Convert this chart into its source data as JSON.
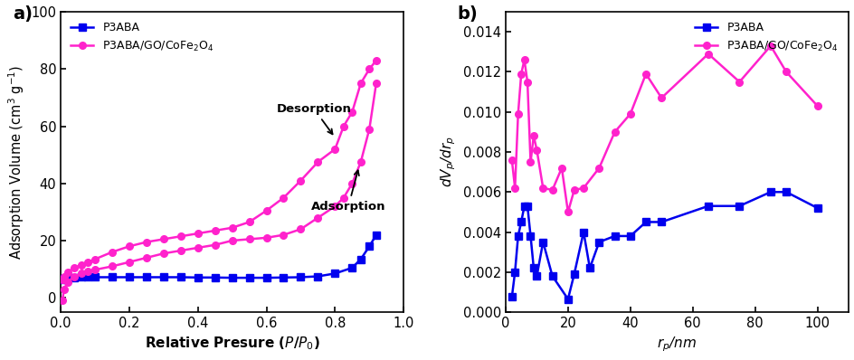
{
  "panel_a": {
    "blue_adsorption_x": [
      0.005,
      0.01,
      0.02,
      0.04,
      0.06,
      0.08,
      0.1,
      0.15,
      0.2,
      0.25,
      0.3,
      0.35,
      0.4,
      0.45,
      0.5,
      0.55,
      0.6,
      0.65,
      0.7,
      0.75,
      0.8,
      0.85,
      0.875,
      0.9,
      0.92
    ],
    "blue_adsorption_y": [
      6.5,
      6.8,
      7.0,
      7.1,
      7.2,
      7.2,
      7.2,
      7.2,
      7.2,
      7.2,
      7.2,
      7.2,
      7.1,
      7.1,
      7.0,
      7.0,
      7.0,
      7.1,
      7.2,
      7.5,
      8.5,
      10.5,
      13.5,
      18.0,
      22.0
    ],
    "pink_adsorption_x": [
      0.005,
      0.01,
      0.02,
      0.04,
      0.06,
      0.08,
      0.1,
      0.15,
      0.2,
      0.25,
      0.3,
      0.35,
      0.4,
      0.45,
      0.5,
      0.55,
      0.6,
      0.65,
      0.7,
      0.75,
      0.8,
      0.825,
      0.85,
      0.875,
      0.9,
      0.92
    ],
    "pink_adsorption_y": [
      -1.0,
      3.0,
      5.5,
      7.5,
      8.5,
      9.2,
      9.8,
      11.0,
      12.5,
      14.0,
      15.5,
      16.5,
      17.5,
      18.5,
      20.0,
      20.5,
      21.0,
      22.0,
      24.0,
      28.0,
      32.0,
      35.0,
      40.0,
      47.5,
      59.0,
      75.0
    ],
    "pink_desorption_x": [
      0.92,
      0.9,
      0.875,
      0.85,
      0.825,
      0.8,
      0.75,
      0.7,
      0.65,
      0.6,
      0.55,
      0.5,
      0.45,
      0.4,
      0.35,
      0.3,
      0.25,
      0.2,
      0.15,
      0.1,
      0.08,
      0.06,
      0.04,
      0.02,
      0.01,
      0.005
    ],
    "pink_desorption_y": [
      83.0,
      80.0,
      75.0,
      65.0,
      60.0,
      52.0,
      47.5,
      41.0,
      35.0,
      30.5,
      26.5,
      24.5,
      23.5,
      22.5,
      21.5,
      20.5,
      19.5,
      18.0,
      16.0,
      13.5,
      12.5,
      11.5,
      10.5,
      9.0,
      7.5,
      6.5
    ],
    "xlabel": "Relative Presure ($\\mathbf{\\mathit{P}}$/$\\mathbf{\\mathit{P}}_0$)",
    "ylabel": "Adsorption Volume (cm$^3$ g$^{-1}$)",
    "xlim": [
      0,
      1.0
    ],
    "ylim": [
      -5,
      100
    ],
    "yticks": [
      0,
      20,
      40,
      60,
      80,
      100
    ],
    "xticks": [
      0.0,
      0.2,
      0.4,
      0.6,
      0.8,
      1.0
    ],
    "blue_color": "#0000EE",
    "pink_color": "#FF22CC",
    "label_blue": "P3ABA",
    "label_pink": "P3ABA/GO/CoFe$_2$O$_4$",
    "desorption_annotation": "Desorption",
    "adsorption_annotation": "Adsorption",
    "panel_label": "a)"
  },
  "panel_b": {
    "blue_x": [
      2.0,
      3.0,
      4.0,
      5.0,
      6.0,
      7.0,
      8.0,
      9.0,
      10.0,
      12.0,
      15.0,
      20.0,
      22.0,
      25.0,
      27.0,
      30.0,
      35.0,
      40.0,
      45.0,
      50.0,
      65.0,
      75.0,
      85.0,
      90.0,
      100.0
    ],
    "blue_y": [
      0.00075,
      0.002,
      0.0038,
      0.0045,
      0.0053,
      0.0053,
      0.0038,
      0.0022,
      0.0018,
      0.0035,
      0.0018,
      0.00065,
      0.0019,
      0.004,
      0.0022,
      0.0035,
      0.0038,
      0.0038,
      0.0045,
      0.0045,
      0.0053,
      0.0053,
      0.006,
      0.006,
      0.0052
    ],
    "pink_x": [
      2.0,
      3.0,
      4.0,
      5.0,
      6.0,
      7.0,
      8.0,
      9.0,
      10.0,
      12.0,
      15.0,
      18.0,
      20.0,
      22.0,
      25.0,
      30.0,
      35.0,
      40.0,
      45.0,
      50.0,
      65.0,
      75.0,
      85.0,
      90.0,
      100.0
    ],
    "pink_y": [
      0.0076,
      0.0062,
      0.0099,
      0.0119,
      0.0126,
      0.0115,
      0.0075,
      0.0088,
      0.0081,
      0.0062,
      0.0061,
      0.0072,
      0.005,
      0.0061,
      0.0062,
      0.0072,
      0.009,
      0.0099,
      0.0119,
      0.0107,
      0.0129,
      0.0115,
      0.0133,
      0.012,
      0.0103
    ],
    "xlabel": "$r_p$/nm",
    "ylabel": "$dV_p$/$dr_p$",
    "xlim": [
      0,
      110
    ],
    "ylim": [
      0,
      0.015
    ],
    "yticks": [
      0.0,
      0.002,
      0.004,
      0.006,
      0.008,
      0.01,
      0.012,
      0.014
    ],
    "xticks": [
      0,
      20,
      40,
      60,
      80,
      100
    ],
    "blue_color": "#0000EE",
    "pink_color": "#FF22CC",
    "label_blue": "P3ABA",
    "label_pink": "P3ABA/GO/CoFe$_2$O$_4$",
    "panel_label": "b)"
  }
}
